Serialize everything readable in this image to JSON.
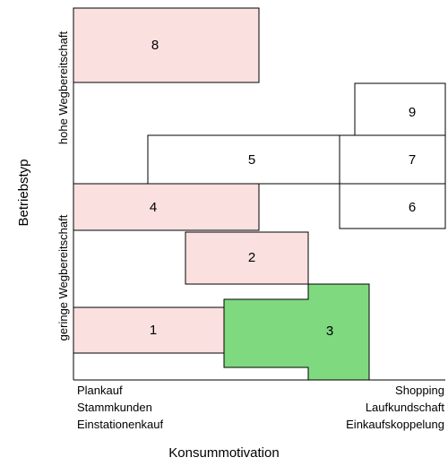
{
  "y_axis_title": "Betriebstyp",
  "x_axis_title": "Konsummotivation",
  "y_labels": {
    "high": "hohe Wegbereitschaft",
    "low": "geringe Wegbereitschaft"
  },
  "x_labels": {
    "left": [
      "Plankauf",
      "Stammkunden",
      "Einstationenkauf"
    ],
    "right": [
      "Shopping",
      "Laufkundschaft",
      "Einkaufskoppelung"
    ]
  },
  "boxes": [
    {
      "label": "8",
      "highlight": "pink"
    },
    {
      "label": "9",
      "highlight": "none"
    },
    {
      "label": "5",
      "highlight": "none"
    },
    {
      "label": "7",
      "highlight": "none"
    },
    {
      "label": "4",
      "highlight": "pink"
    },
    {
      "label": "6",
      "highlight": "none"
    },
    {
      "label": "2",
      "highlight": "pink"
    },
    {
      "label": "1",
      "highlight": "pink"
    },
    {
      "label": "3",
      "highlight": "green"
    }
  ],
  "colors": {
    "pink": "#fbe0e0",
    "green": "#7fd97f",
    "stroke": "#000000"
  }
}
